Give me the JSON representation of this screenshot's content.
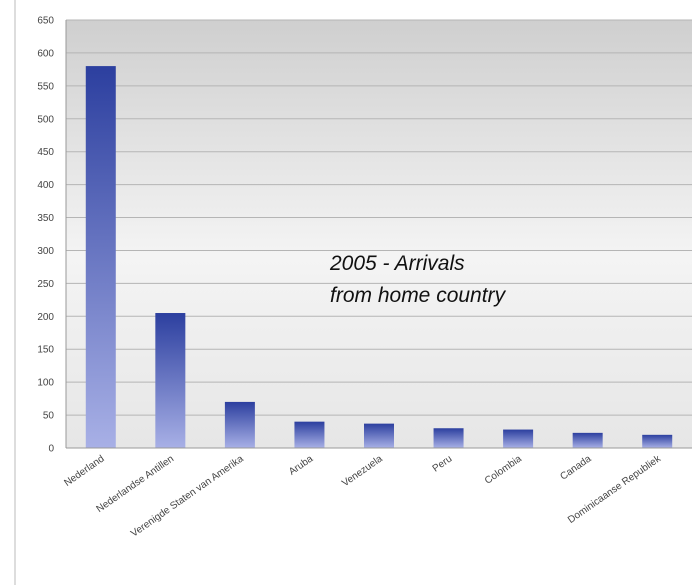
{
  "chart_data": {
    "type": "bar",
    "title": "",
    "xlabel": "",
    "ylabel": "",
    "ylim": [
      0,
      650
    ],
    "yticks": [
      0,
      50,
      100,
      150,
      200,
      250,
      300,
      350,
      400,
      450,
      500,
      550,
      600,
      650
    ],
    "grid": true,
    "legend": "none",
    "categories": [
      "Nederland",
      "Nederlandse Antillen",
      "Verenigde Staten van Amerika",
      "Aruba",
      "Venezuela",
      "Peru",
      "Colombia",
      "Canada",
      "Dominicaanse Republiek"
    ],
    "values": [
      580,
      205,
      70,
      40,
      37,
      30,
      28,
      23,
      20
    ],
    "annotation": [
      "2005 - Arrivals",
      "from home country"
    ],
    "colors": {
      "bar_top": "#2c3f9f",
      "bar_bottom": "#a8b0e6",
      "grid": "#b5b5b5",
      "background_top": "#cfcfcf",
      "background_bottom": "#f4f4f4"
    }
  }
}
